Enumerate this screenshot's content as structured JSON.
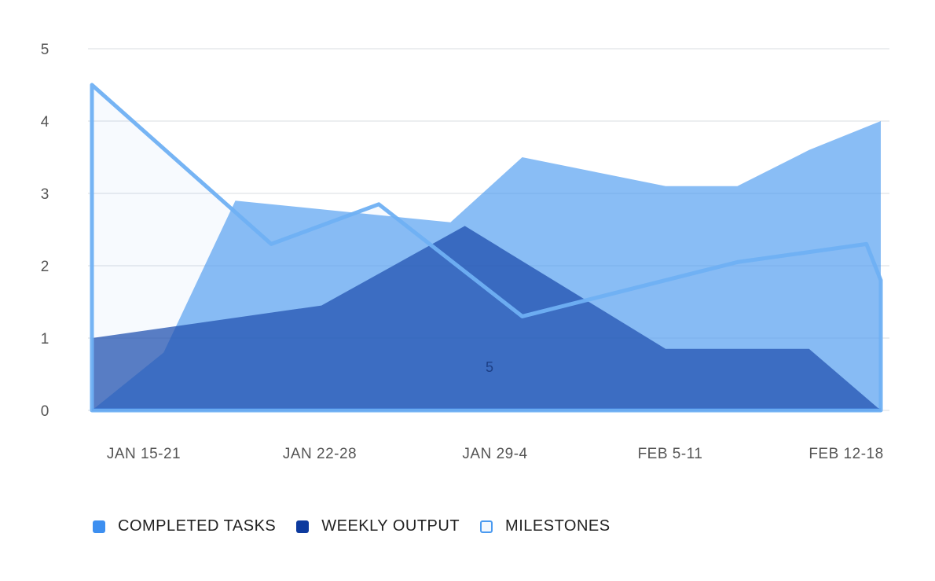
{
  "chart_data": {
    "type": "area",
    "title": "",
    "xlabel": "",
    "ylabel": "",
    "ylim": [
      0,
      5
    ],
    "y_ticks": [
      "0",
      "1",
      "2",
      "3",
      "4",
      "5"
    ],
    "x_tick_labels": [
      "JAN 15-21",
      "JAN 22-28",
      "JAN 29-4",
      "FEB 5-11",
      "FEB 12-18"
    ],
    "x_range": [
      0,
      11
    ],
    "grid": true,
    "legend_position": "bottom-left",
    "center_annotation": "5",
    "series": [
      {
        "name": "COMPLETED TASKS",
        "color": "#4a9af0",
        "fill_opacity": 0.65,
        "x": [
          0,
          1,
          2,
          3,
          4,
          5,
          6,
          7,
          8,
          9,
          10,
          11
        ],
        "values": [
          0,
          0.8,
          2.9,
          2.8,
          2.7,
          2.6,
          3.5,
          3.3,
          3.1,
          3.1,
          3.6,
          4.0
        ]
      },
      {
        "name": "WEEKLY OUTPUT",
        "color": "#1f4fae",
        "fill_opacity": 0.75,
        "x": [
          0,
          3.2,
          5.2,
          8,
          10,
          11
        ],
        "values": [
          1.0,
          1.45,
          2.55,
          0.85,
          0.85,
          0
        ]
      },
      {
        "name": "MILESTONES",
        "color": "#6fb0f3",
        "fill_opacity": 0.06,
        "x": [
          0,
          2.5,
          4,
          6,
          9,
          10.8,
          11
        ],
        "values": [
          4.5,
          2.3,
          2.85,
          1.3,
          2.05,
          2.3,
          1.8
        ]
      }
    ]
  }
}
